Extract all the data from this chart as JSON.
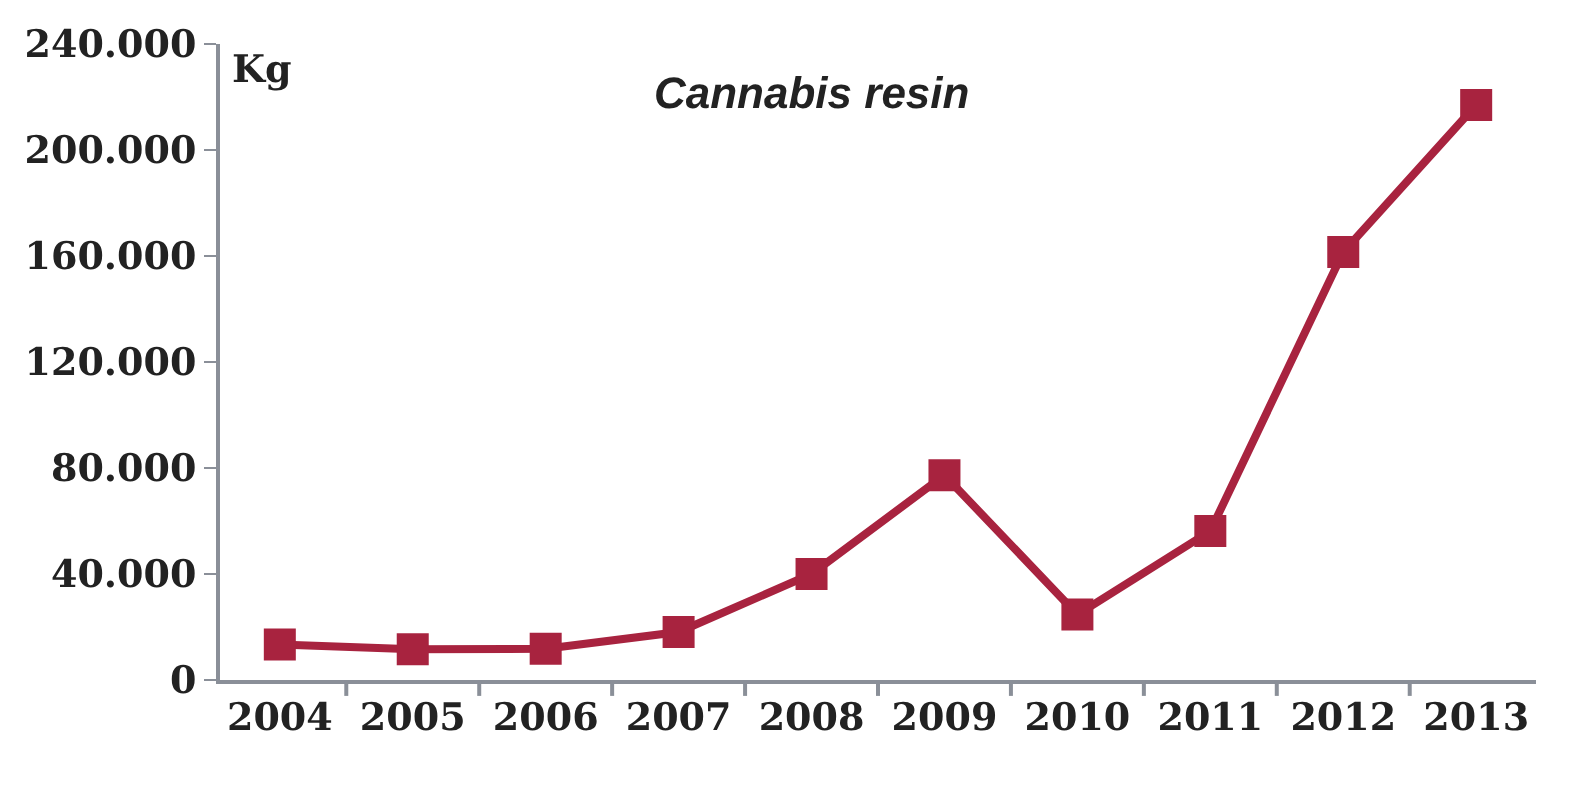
{
  "chart_data": {
    "type": "line",
    "title": "Cannabis resin",
    "ylabel": "Kg",
    "categories": [
      "2004",
      "2005",
      "2006",
      "2007",
      "2008",
      "2009",
      "2010",
      "2011",
      "2012",
      "2013"
    ],
    "series": [
      {
        "color": "#a8233f",
        "values": [
          13400,
          11600,
          11800,
          18100,
          40000,
          77300,
          24700,
          56200,
          161500,
          217000
        ]
      }
    ],
    "ylim": [
      0,
      240000
    ],
    "yticks": [
      {
        "value": 0,
        "label": "0"
      },
      {
        "value": 40000,
        "label": "40.000"
      },
      {
        "value": 80000,
        "label": "80.000"
      },
      {
        "value": 120000,
        "label": "120.000"
      },
      {
        "value": 160000,
        "label": "160.000"
      },
      {
        "value": 200000,
        "label": "200.000"
      },
      {
        "value": 240000,
        "label": "240.000"
      }
    ],
    "marker": "square",
    "line_style": "solid"
  }
}
